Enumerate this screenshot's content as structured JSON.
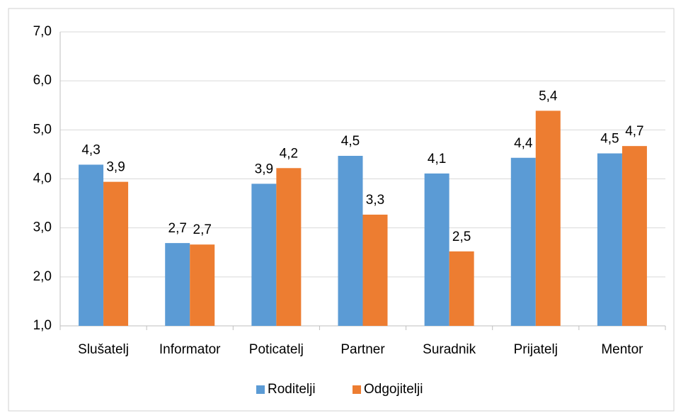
{
  "chart_data": {
    "type": "bar",
    "categories": [
      "Slušatelj",
      "Informator",
      "Poticatelj",
      "Partner",
      "Suradnik",
      "Prijatelj",
      "Mentor"
    ],
    "series": [
      {
        "name": "Roditelji",
        "color": "#5b9bd5",
        "values": [
          4.29,
          2.69,
          3.9,
          4.47,
          4.11,
          4.43,
          4.52
        ],
        "value_labels": [
          "4,3",
          "2,7",
          "3,9",
          "4,5",
          "4,1",
          "4,4",
          "4,5"
        ]
      },
      {
        "name": "Odgojitelji",
        "color": "#ed7d31",
        "values": [
          3.94,
          2.66,
          4.22,
          3.27,
          2.52,
          5.39,
          4.67
        ],
        "value_labels": [
          "3,9",
          "2,7",
          "4,2",
          "3,3",
          "2,5",
          "5,4",
          "4,7"
        ]
      }
    ],
    "ylim": [
      1,
      7
    ],
    "yticks": [
      {
        "value": 1,
        "label": "1,0"
      },
      {
        "value": 2,
        "label": "2,0"
      },
      {
        "value": 3,
        "label": "3,0"
      },
      {
        "value": 4,
        "label": "4,0"
      },
      {
        "value": 5,
        "label": "5,0"
      },
      {
        "value": 6,
        "label": "6,0"
      },
      {
        "value": 7,
        "label": "7,0"
      }
    ],
    "grid": true,
    "legend": "bottom"
  }
}
